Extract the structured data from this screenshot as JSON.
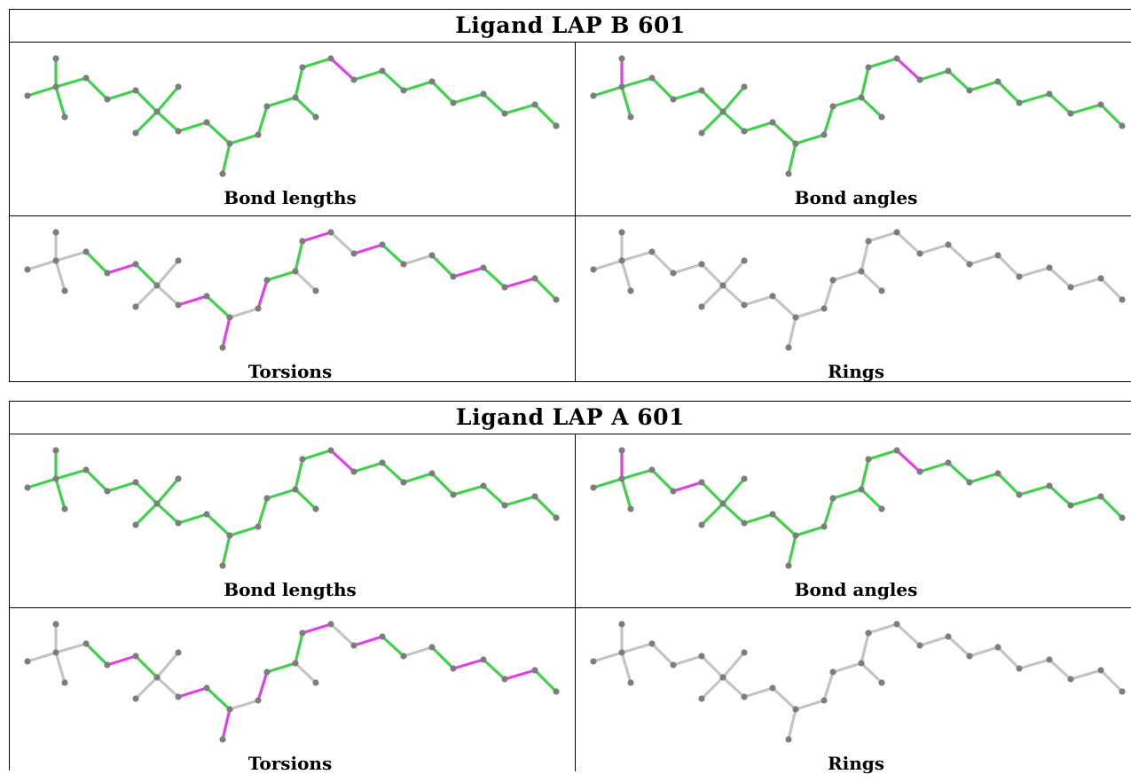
{
  "colors": {
    "pass": "#3fd14a",
    "outlier": "#e040e6",
    "unchecked": "#c4c4c4",
    "atom": "#7d7d7d"
  },
  "ligands": [
    {
      "title": "Ligand LAP B 601",
      "panels": [
        {
          "caption": "Bond lengths",
          "bond_states": "GGGGGGGGGGGGGGGGGGGMGGGGGGGGGGGGGGG"
        },
        {
          "caption": "Bond angles",
          "bond_states": "GMGGGGGGGGGGGGGGGGGMGGGGGGGGGGGGGGG"
        },
        {
          "caption": "Torsions",
          "bond_states": "NNNNGMGNNNMGMNMGNGMNMGNGMGMGMGMNNNN"
        },
        {
          "caption": "Rings",
          "bond_states": "NNNNNNNNNNNNNNNNNNNNNNNNNNNNNNNNNNN"
        }
      ]
    },
    {
      "title": "Ligand LAP A 601",
      "panels": [
        {
          "caption": "Bond lengths",
          "bond_states": "GGGGGGGGGGGGGGGGGGGMGGGGGGGGGGGGGGG"
        },
        {
          "caption": "Bond angles",
          "bond_states": "GMGGGMGGGGGGGGGGGGGMGGGGGGGGGGGGGGG"
        },
        {
          "caption": "Torsions",
          "bond_states": "NNNNGMGNNNMGMNMGNGMNMGNGMGMGMGMNNNN"
        },
        {
          "caption": "Rings",
          "bond_states": "NNNNNNNNNNNNNNNNNNNNNNNNNNNNNNNNNNN"
        }
      ]
    }
  ]
}
